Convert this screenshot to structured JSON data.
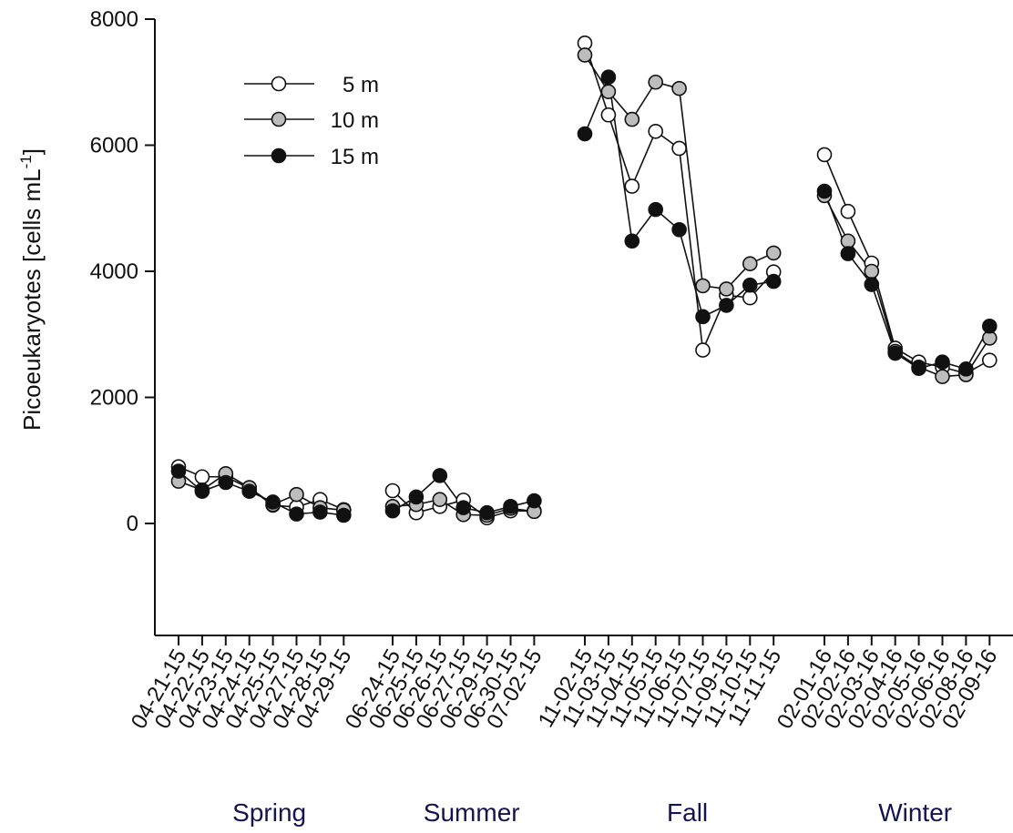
{
  "chart_data": {
    "type": "line",
    "ylabel_main": "Picoeukaryotes [cells mL",
    "ylabel_sup": "-1",
    "ylabel_end": "]",
    "ylim": [
      -1800,
      8000
    ],
    "yticks": [
      0,
      2000,
      4000,
      6000,
      8000
    ],
    "grid": false,
    "legend_position": "top-left",
    "season_color": "#141450",
    "groups": [
      {
        "name": "Spring",
        "dates": [
          "04-21-15",
          "04-22-15",
          "04-23-15",
          "04-24-15",
          "04-25-15",
          "04-27-15",
          "04-28-15",
          "04-29-15"
        ]
      },
      {
        "name": "Summer",
        "dates": [
          "06-24-15",
          "06-25-15",
          "06-26-15",
          "06-27-15",
          "06-29-15",
          "06-30-15",
          "07-02-15"
        ]
      },
      {
        "name": "Fall",
        "dates": [
          "11-02-15",
          "11-03-15",
          "11-04-15",
          "11-05-15",
          "11-06-15",
          "11-07-15",
          "11-09-15",
          "11-10-15",
          "11-11-15"
        ]
      },
      {
        "name": "Winter",
        "dates": [
          "02-01-16",
          "02-02-16",
          "02-03-16",
          "02-04-16",
          "02-05-16",
          "02-06-16",
          "02-08-16",
          "02-09-16"
        ]
      }
    ],
    "series": [
      {
        "name": "5 m",
        "fill": "#ffffff",
        "values": [
          [
            900,
            740,
            740,
            560,
            290,
            260,
            380,
            220
          ],
          [
            520,
            170,
            270,
            370,
            90,
            200,
            200
          ],
          [
            7620,
            6480,
            5350,
            6220,
            5950,
            2750,
            3620,
            3580,
            3990
          ],
          [
            5850,
            4950,
            4130,
            2780,
            2560,
            2480,
            2380,
            2590
          ]
        ]
      },
      {
        "name": "10 m",
        "fill": "#bdbdbd",
        "values": [
          [
            670,
            530,
            790,
            570,
            300,
            460,
            250,
            210
          ],
          [
            270,
            300,
            380,
            140,
            130,
            240,
            190
          ],
          [
            7430,
            6850,
            6410,
            7000,
            6900,
            3770,
            3720,
            4120,
            4290
          ],
          [
            5200,
            4480,
            4000,
            2730,
            2480,
            2330,
            2360,
            2940
          ]
        ]
      },
      {
        "name": "15 m",
        "fill": "#111111",
        "values": [
          [
            830,
            510,
            650,
            510,
            340,
            150,
            180,
            130
          ],
          [
            200,
            420,
            760,
            250,
            170,
            270,
            360
          ],
          [
            6180,
            7080,
            4480,
            4980,
            4660,
            3280,
            3460,
            3780,
            3840
          ],
          [
            5270,
            4280,
            3790,
            2700,
            2460,
            2560,
            2450,
            3130
          ]
        ]
      }
    ]
  }
}
